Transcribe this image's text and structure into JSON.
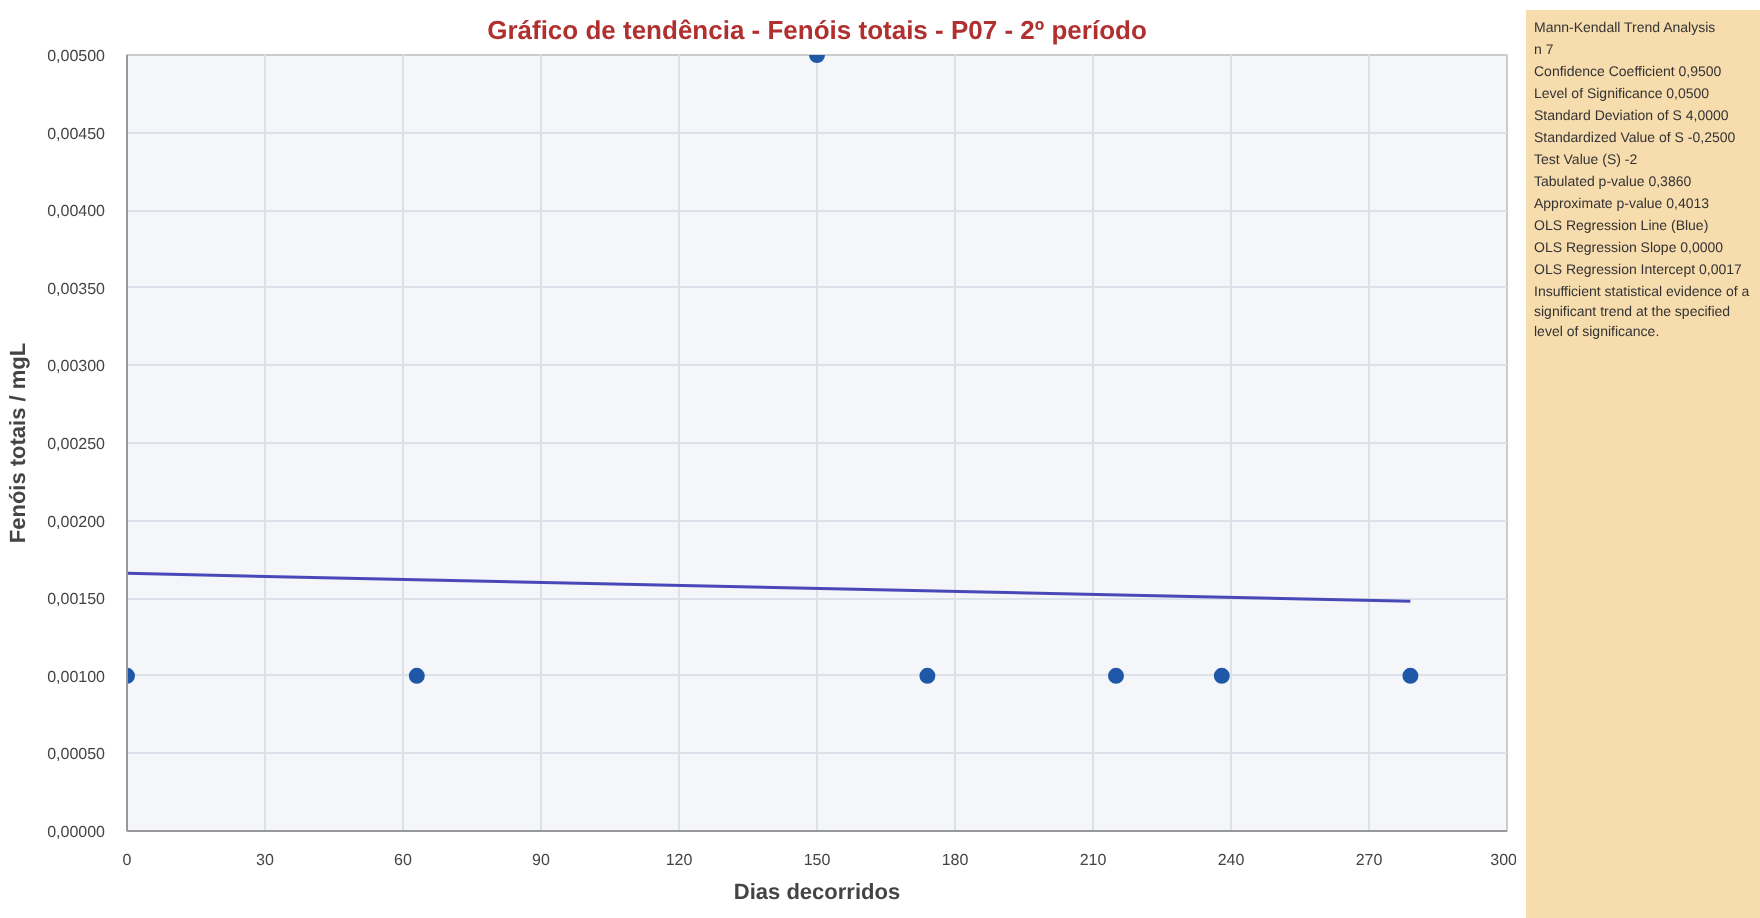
{
  "chart_data": {
    "type": "scatter",
    "title": "Gráfico de tendência - Fenóis totais - P07 - 2º período",
    "xlabel": "Dias decorridos",
    "ylabel": "Fenóis totais / mgL",
    "series": [
      {
        "color": "#2058a8",
        "x": [
          0,
          63,
          150,
          174,
          215,
          238,
          279
        ],
        "values": [
          0.001,
          0.001,
          0.005,
          0.001,
          0.001,
          0.001,
          0.001
        ]
      },
      {
        "type": "line",
        "marker": "none",
        "color": "#4a48b8",
        "x": [
          0,
          279
        ],
        "values": [
          0.00166,
          0.00148
        ]
      }
    ],
    "xlim": [
      0,
      300
    ],
    "xticks": [
      0,
      30,
      60,
      90,
      120,
      150,
      180,
      210,
      240,
      270,
      300
    ],
    "ylim": [
      0,
      0.005
    ],
    "yticks": [
      {
        "value": 0,
        "label": "0,00000"
      },
      {
        "value": 0.0005,
        "label": "0,00050"
      },
      {
        "value": 0.001,
        "label": "0,00100"
      },
      {
        "value": 0.0015,
        "label": "0,00150"
      },
      {
        "value": 0.002,
        "label": "0,00200"
      },
      {
        "value": 0.0025,
        "label": "0,00250"
      },
      {
        "value": 0.003,
        "label": "0,00300"
      },
      {
        "value": 0.0035,
        "label": "0,00350"
      },
      {
        "value": 0.004,
        "label": "0,00400"
      },
      {
        "value": 0.0045,
        "label": "0,00450"
      },
      {
        "value": 0.005,
        "label": "0,00500"
      }
    ],
    "grid": true,
    "marker": "circle",
    "annotations": [
      "Mann-Kendall Trend Analysis",
      "n 7",
      "Confidence Coefficient 0,9500",
      "Level of Significance 0,0500",
      "Standard Deviation of S 4,0000",
      "Standardized Value of S -0,2500",
      "Test Value (S) -2",
      "Tabulated p-value 0,3860",
      "Approximate p-value 0,4013",
      "OLS Regression Line (Blue)",
      "OLS Regression Slope 0,0000",
      "OLS Regression Intercept 0,0017",
      "Insufficient statistical evidence of a significant trend at the specified level of significance."
    ]
  }
}
